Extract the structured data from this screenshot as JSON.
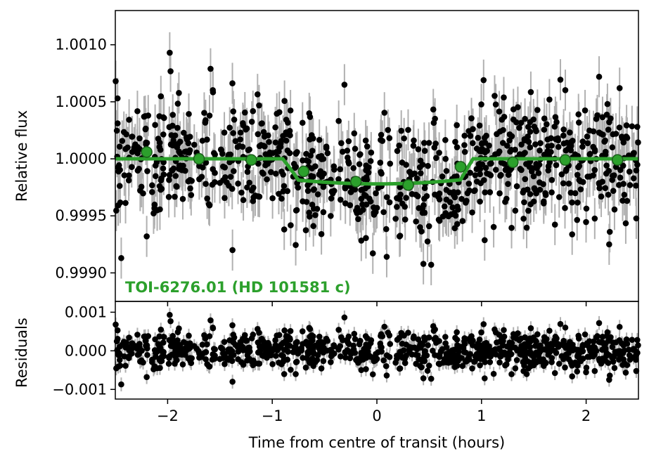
{
  "chart_data": [
    {
      "type": "scatter",
      "panel": "top",
      "xlabel": "",
      "ylabel": "Relative flux",
      "xlim": [
        -2.5,
        2.5
      ],
      "ylim": [
        0.99875,
        1.0013
      ],
      "yticks": [
        {
          "value": 0.999,
          "label": "0.9990"
        },
        {
          "value": 0.9995,
          "label": "0.9995"
        },
        {
          "value": 1.0,
          "label": "1.0000"
        },
        {
          "value": 1.0005,
          "label": "1.0005"
        },
        {
          "value": 1.001,
          "label": "1.0010"
        }
      ],
      "annotation": "TOI-6276.01 (HD 101581 c)",
      "annotation_color": "#2ca02c",
      "raw_points": {
        "marker_color": "#000000",
        "errorbar_color": "#b0b0b0",
        "n": 900,
        "x_range": [
          -2.5,
          2.5
        ],
        "scatter_sigma": 0.00025,
        "errorbar_halfwidth": 0.00018,
        "notable_points": [
          {
            "x": -1.98,
            "y": 1.00093
          },
          {
            "x": -0.31,
            "y": 1.00065
          },
          {
            "x": 1.02,
            "y": 1.00069
          },
          {
            "x": 2.32,
            "y": 1.00062
          },
          {
            "x": -1.38,
            "y": 0.9992
          },
          {
            "x": -2.2,
            "y": 0.99932
          },
          {
            "x": 2.22,
            "y": 0.99925
          }
        ]
      },
      "model": {
        "color": "#2ca02c",
        "baseline": 1.0,
        "depth": 0.00022,
        "ingress_start": -0.9,
        "ingress_end": -0.75,
        "egress_start": 0.8,
        "egress_end": 0.92
      },
      "binned_points": {
        "color": "#2ca02c",
        "x": [
          -2.2,
          -1.7,
          -1.2,
          -0.7,
          -0.2,
          0.3,
          0.8,
          1.3,
          1.8,
          2.3
        ],
        "y": [
          1.00006,
          1.0,
          0.99999,
          0.99989,
          0.9998,
          0.99977,
          0.99993,
          0.99997,
          0.99999,
          0.99999
        ]
      }
    },
    {
      "type": "scatter",
      "panel": "bottom",
      "xlabel": "Time from centre of transit (hours)",
      "ylabel": "Residuals",
      "xlim": [
        -2.5,
        2.5
      ],
      "ylim": [
        -0.00125,
        0.00128
      ],
      "xticks": [
        {
          "value": -2,
          "label": "−2"
        },
        {
          "value": -1,
          "label": "−1"
        },
        {
          "value": 0,
          "label": "0"
        },
        {
          "value": 1,
          "label": "1"
        },
        {
          "value": 2,
          "label": "2"
        }
      ],
      "yticks": [
        {
          "value": -0.001,
          "label": "−0.001"
        },
        {
          "value": 0.0,
          "label": "0.000"
        },
        {
          "value": 0.001,
          "label": "0.001"
        }
      ],
      "raw_points": {
        "marker_color": "#000000",
        "errorbar_color": "#b0b0b0",
        "n": 900,
        "scatter_sigma": 0.00025,
        "errorbar_halfwidth": 0.00018
      }
    }
  ]
}
